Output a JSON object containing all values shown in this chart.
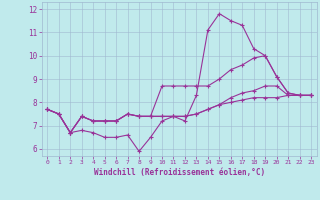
{
  "title": "",
  "xlabel": "Windchill (Refroidissement éolien,°C)",
  "ylabel": "",
  "bg_color": "#c0eaec",
  "line_color": "#993399",
  "grid_color": "#a0b8d0",
  "xlim": [
    -0.5,
    23.5
  ],
  "ylim": [
    5.7,
    12.3
  ],
  "xticks": [
    0,
    1,
    2,
    3,
    4,
    5,
    6,
    7,
    8,
    9,
    10,
    11,
    12,
    13,
    14,
    15,
    16,
    17,
    18,
    19,
    20,
    21,
    22,
    23
  ],
  "yticks": [
    6,
    7,
    8,
    9,
    10,
    11,
    12
  ],
  "series": [
    [
      7.7,
      7.5,
      6.7,
      6.8,
      6.7,
      6.5,
      6.5,
      6.6,
      5.9,
      6.5,
      7.2,
      7.4,
      7.2,
      8.3,
      11.1,
      11.8,
      11.5,
      11.3,
      10.3,
      10.0,
      9.1,
      8.4,
      8.3,
      8.3
    ],
    [
      7.7,
      7.5,
      6.7,
      7.4,
      7.2,
      7.2,
      7.2,
      7.5,
      7.4,
      7.4,
      8.7,
      8.7,
      8.7,
      8.7,
      8.7,
      9.0,
      9.4,
      9.6,
      9.9,
      10.0,
      9.1,
      8.4,
      8.3,
      8.3
    ],
    [
      7.7,
      7.5,
      6.7,
      7.4,
      7.2,
      7.2,
      7.2,
      7.5,
      7.4,
      7.4,
      7.4,
      7.4,
      7.4,
      7.5,
      7.7,
      7.9,
      8.2,
      8.4,
      8.5,
      8.7,
      8.7,
      8.3,
      8.3,
      8.3
    ],
    [
      7.7,
      7.5,
      6.7,
      7.4,
      7.2,
      7.2,
      7.2,
      7.5,
      7.4,
      7.4,
      7.4,
      7.4,
      7.4,
      7.5,
      7.7,
      7.9,
      8.0,
      8.1,
      8.2,
      8.2,
      8.2,
      8.3,
      8.3,
      8.3
    ]
  ]
}
